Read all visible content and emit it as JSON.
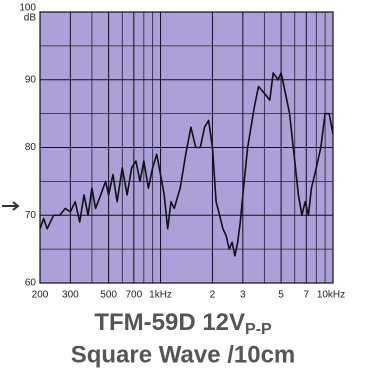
{
  "chart_data": {
    "type": "line",
    "title": "TFM-59D 12V",
    "title_subscript": "P-P",
    "subtitle": "Square Wave /10cm",
    "y_label": "dB",
    "log_x": true,
    "grid": true,
    "background": "#ad9fd8",
    "xlim": [
      200,
      10000
    ],
    "ylim": [
      60,
      100
    ],
    "xticks": [
      200,
      300,
      500,
      700,
      {
        "value": 1000,
        "label": "1kHz"
      },
      {
        "value": 2000,
        "label": "2"
      },
      {
        "value": 3000,
        "label": "3"
      },
      {
        "value": 5000,
        "label": "5"
      },
      {
        "value": 7000,
        "label": "7"
      },
      {
        "value": 10000,
        "label": "10kHz"
      }
    ],
    "minor_xticks": [
      400,
      600,
      800,
      900,
      4000,
      6000,
      8000,
      9000
    ],
    "yticks": [
      60,
      70,
      80,
      90,
      100
    ],
    "minor_yticks": [
      65,
      75,
      85,
      95
    ],
    "series": [
      {
        "color": "#111111",
        "x": [
          200,
          210,
          220,
          240,
          260,
          280,
          300,
          320,
          340,
          360,
          380,
          400,
          420,
          450,
          480,
          500,
          530,
          560,
          600,
          640,
          680,
          720,
          760,
          800,
          850,
          900,
          950,
          1000,
          1050,
          1100,
          1150,
          1200,
          1300,
          1400,
          1500,
          1600,
          1700,
          1800,
          1900,
          2000,
          2100,
          2200,
          2300,
          2400,
          2500,
          2600,
          2700,
          2800,
          2900,
          3000,
          3200,
          3500,
          3700,
          4000,
          4300,
          4500,
          4800,
          5000,
          5300,
          5600,
          6000,
          6300,
          6600,
          6900,
          7200,
          7500,
          8000,
          8500,
          9000,
          9500,
          10000
        ],
        "values": [
          68,
          69.5,
          68,
          70,
          70,
          71,
          70.5,
          72,
          69,
          73,
          70,
          74,
          71,
          73,
          75,
          73,
          76,
          72,
          77,
          73,
          77,
          78,
          75,
          78,
          74,
          77,
          79,
          76,
          73,
          68,
          72,
          71,
          74,
          79,
          83,
          80,
          80,
          83,
          84,
          80,
          72,
          70,
          68,
          67,
          65,
          66,
          64,
          66,
          69,
          73,
          80,
          86,
          89,
          88,
          87,
          91,
          90,
          91,
          88,
          85,
          78,
          73,
          70,
          72,
          70,
          74,
          77,
          80,
          85,
          85,
          82
        ]
      }
    ]
  }
}
